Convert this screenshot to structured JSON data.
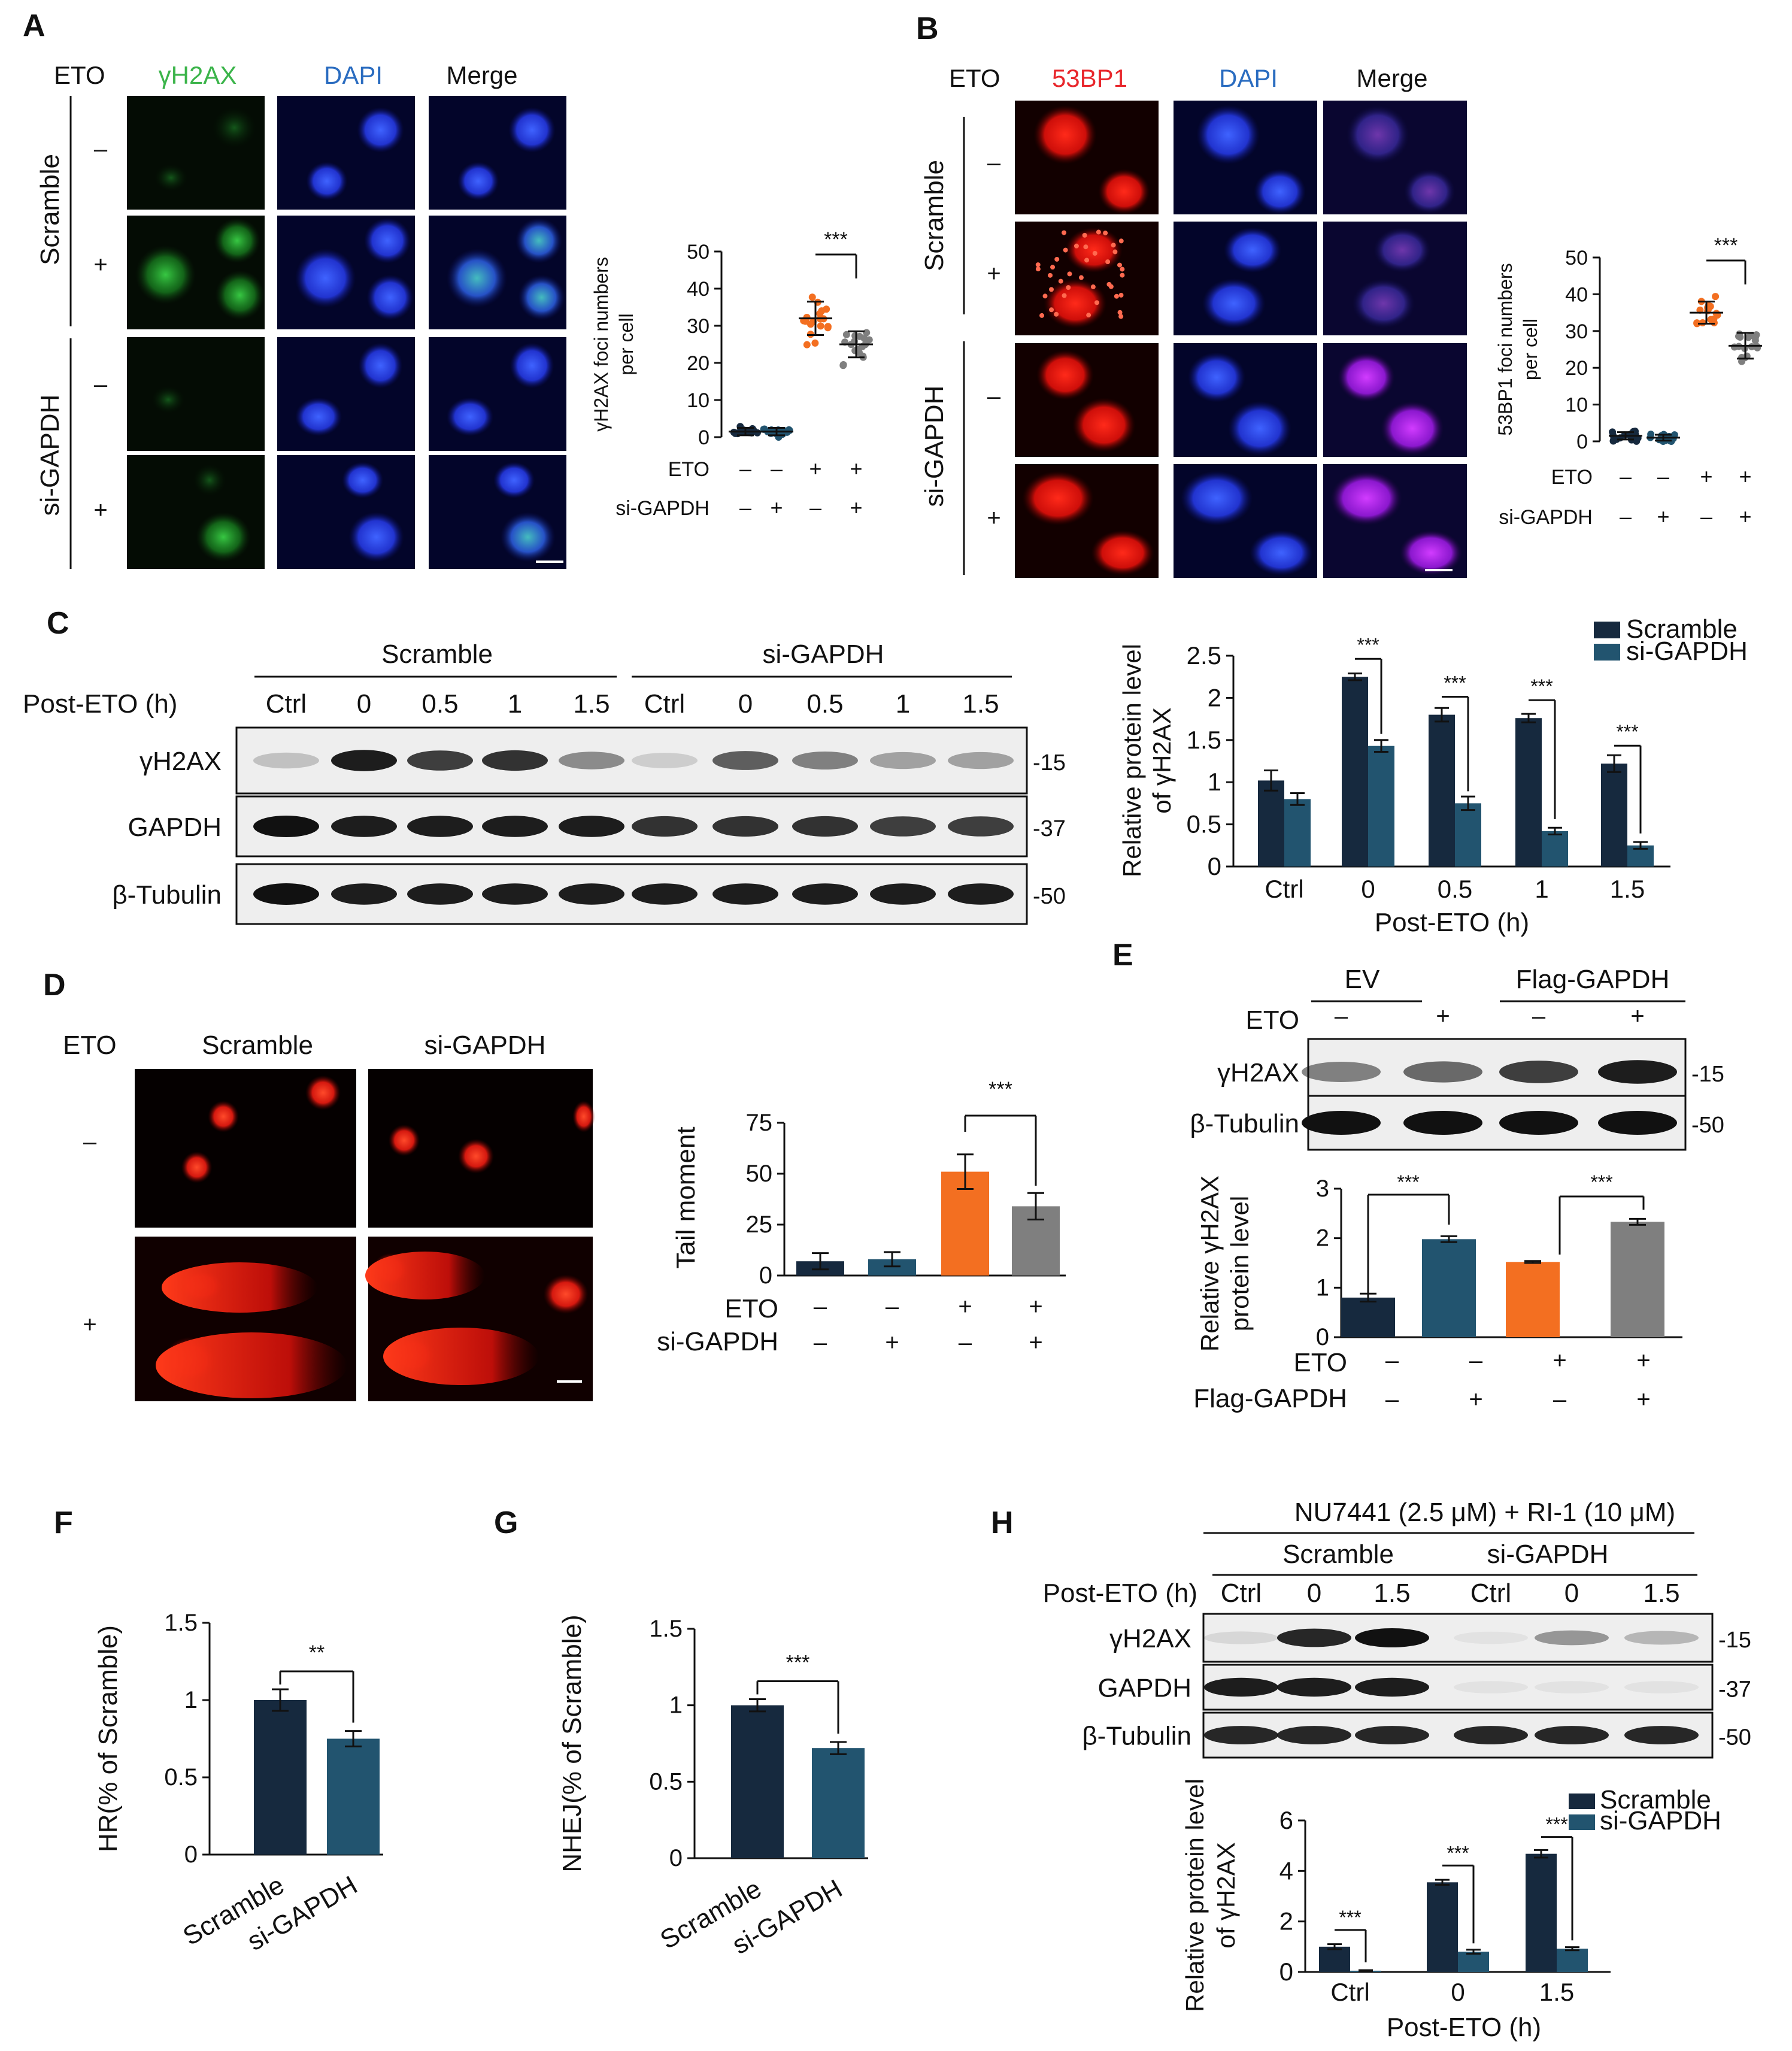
{
  "colors": {
    "dark_navy": "#16293e",
    "teal_blue": "#22546f",
    "orange": "#f36f21",
    "gray": "#7f7f7f",
    "green_label": "#3bb44a",
    "blue_label": "#2a6cc0",
    "red_label": "#e8262b"
  },
  "panel_letters": [
    "A",
    "B",
    "C",
    "D",
    "E",
    "F",
    "G",
    "H"
  ],
  "panelA": {
    "eto_label": "ETO",
    "col_labels": [
      "γH2AX",
      "DAPI",
      "Merge"
    ],
    "group_labels": [
      "Scramble",
      "si-GAPDH"
    ],
    "row_signs": [
      "–",
      "+",
      "–",
      "+"
    ],
    "chart": {
      "ylabel_line1": "γH2AX foci numbers",
      "ylabel_line2": "per cell",
      "yticks": [
        "0",
        "10",
        "20",
        "30",
        "40",
        "50"
      ],
      "row1_label": "ETO",
      "row1_signs": [
        "–",
        "–",
        "+",
        "+"
      ],
      "row2_label": "si-GAPDH",
      "row2_signs": [
        "–",
        "+",
        "–",
        "+"
      ],
      "sig": "***"
    }
  },
  "panelB": {
    "eto_label": "ETO",
    "col_labels": [
      "53BP1",
      "DAPI",
      "Merge"
    ],
    "group_labels": [
      "Scramble",
      "si-GAPDH"
    ],
    "row_signs": [
      "–",
      "+",
      "–",
      "+"
    ],
    "chart": {
      "ylabel_line1": "53BP1 foci numbers",
      "ylabel_line2": "per cell",
      "yticks": [
        "0",
        "10",
        "20",
        "30",
        "40",
        "50"
      ],
      "row1_label": "ETO",
      "row1_signs": [
        "–",
        "–",
        "+",
        "+"
      ],
      "row2_label": "si-GAPDH",
      "row2_signs": [
        "–",
        "+",
        "–",
        "+"
      ],
      "sig": "***"
    }
  },
  "panelC": {
    "group_labels": [
      "Scramble",
      "si-GAPDH"
    ],
    "time_label": "Post-ETO (h)",
    "lane_labels": [
      "Ctrl",
      "0",
      "0.5",
      "1",
      "1.5",
      "Ctrl",
      "0",
      "0.5",
      "1",
      "1.5"
    ],
    "blot_labels": [
      "γH2AX",
      "GAPDH",
      "β-Tubulin"
    ],
    "mw": [
      "-15",
      "-37",
      "-50"
    ],
    "chart": {
      "ylabel_line1": "Relative protein level",
      "ylabel_line2": "of γH2AX",
      "xlabel": "Post-ETO (h)",
      "yticks": [
        "0",
        "0.5",
        "1",
        "1.5",
        "2",
        "2.5"
      ],
      "sig": "***"
    }
  },
  "panelD": {
    "eto_label": "ETO",
    "col_labels": [
      "Scramble",
      "si-GAPDH"
    ],
    "row_signs": [
      "–",
      "+"
    ],
    "chart": {
      "ylabel": "Tail moment",
      "yticks": [
        "0",
        "25",
        "50",
        "75"
      ],
      "row1_label": "ETO",
      "row1_signs": [
        "–",
        "–",
        "+",
        "+"
      ],
      "row2_label": "si-GAPDH",
      "row2_signs": [
        "–",
        "+",
        "–",
        "+"
      ],
      "sig": "***"
    }
  },
  "panelE": {
    "group_labels": [
      "EV",
      "Flag-GAPDH"
    ],
    "eto_label": "ETO",
    "lane_signs": [
      "–",
      "+",
      "–",
      "+"
    ],
    "blot_labels": [
      "γH2AX",
      "β-Tubulin"
    ],
    "mw": [
      "-15",
      "-50"
    ],
    "chart": {
      "ylabel_line1": "Relative γH2AX",
      "ylabel_line2": "protein level",
      "yticks": [
        "0",
        "1",
        "2",
        "3"
      ],
      "row1_label": "ETO",
      "row1_signs": [
        "–",
        "–",
        "+",
        "+"
      ],
      "row2_label": "Flag-GAPDH",
      "row2_signs": [
        "–",
        "+",
        "–",
        "+"
      ],
      "sig": "***"
    }
  },
  "panelF": {
    "ylabel": "HR(% of Scramble)",
    "yticks": [
      "0",
      "0.5",
      "1",
      "1.5"
    ],
    "categories": [
      "Scramble",
      "si-GAPDH"
    ],
    "sig": "**"
  },
  "panelG": {
    "ylabel": "NHEJ(% of Scramble)",
    "yticks": [
      "0",
      "0.5",
      "1",
      "1.5"
    ],
    "categories": [
      "Scramble",
      "si-GAPDH"
    ],
    "sig": "***"
  },
  "panelH": {
    "header": "NU7441 (2.5 μM) + RI-1 (10 μM)",
    "group_labels": [
      "Scramble",
      "si-GAPDH"
    ],
    "time_label": "Post-ETO (h)",
    "lane_labels": [
      "Ctrl",
      "0",
      "1.5",
      "Ctrl",
      "0",
      "1.5"
    ],
    "blot_labels": [
      "γH2AX",
      "GAPDH",
      "β-Tubulin"
    ],
    "mw": [
      "-15",
      "-37",
      "-50"
    ],
    "chart": {
      "ylabel_line1": "Relative protein level",
      "ylabel_line2": "of γH2AX",
      "xlabel": "Post-ETO (h)",
      "yticks": [
        "0",
        "2",
        "4",
        "6"
      ],
      "sig": "***"
    }
  },
  "chart_data": [
    {
      "id": "A",
      "type": "scatter",
      "categories": [
        "1",
        "2",
        "3",
        "4"
      ],
      "ylim": [
        0,
        50
      ],
      "mean": [
        1.5,
        1.5,
        32,
        25
      ],
      "sd": [
        1,
        1,
        4.5,
        3.5
      ],
      "point_colors": [
        "#16293e",
        "#22546f",
        "#f36f21",
        "#7f7f7f"
      ]
    },
    {
      "id": "B",
      "type": "scatter",
      "categories": [
        "1",
        "2",
        "3",
        "4"
      ],
      "ylim": [
        0,
        50
      ],
      "mean": [
        1.5,
        1,
        35,
        26
      ],
      "sd": [
        1,
        0.8,
        3,
        3.5
      ],
      "point_colors": [
        "#16293e",
        "#22546f",
        "#f36f21",
        "#7f7f7f"
      ]
    },
    {
      "id": "C",
      "type": "bar",
      "categories": [
        "Ctrl",
        "0",
        "0.5",
        "1",
        "1.5"
      ],
      "ylim": [
        0,
        2.5
      ],
      "series": [
        {
          "name": "Scramble",
          "values": [
            1.02,
            2.25,
            1.8,
            1.76,
            1.22
          ],
          "err": [
            0.12,
            0.04,
            0.08,
            0.05,
            0.1
          ]
        },
        {
          "name": "si-GAPDH",
          "values": [
            0.8,
            1.43,
            0.75,
            0.42,
            0.25
          ],
          "err": [
            0.07,
            0.07,
            0.08,
            0.04,
            0.04
          ]
        }
      ]
    },
    {
      "id": "D",
      "type": "bar",
      "categories": [
        "1",
        "2",
        "3",
        "4"
      ],
      "ylim": [
        0,
        75
      ],
      "values": [
        7,
        8,
        51,
        34
      ],
      "err": [
        4,
        3.5,
        8.5,
        6.5
      ],
      "colors": [
        "#16293e",
        "#22546f",
        "#f36f21",
        "#7f7f7f"
      ]
    },
    {
      "id": "E",
      "type": "bar",
      "categories": [
        "1",
        "2",
        "3",
        "4"
      ],
      "ylim": [
        0,
        3
      ],
      "values": [
        0.8,
        1.98,
        1.52,
        2.33
      ],
      "err": [
        0.08,
        0.06,
        0.02,
        0.06
      ],
      "colors": [
        "#16293e",
        "#22546f",
        "#f36f21",
        "#7f7f7f"
      ]
    },
    {
      "id": "F",
      "type": "bar",
      "categories": [
        "Scramble",
        "si-GAPDH"
      ],
      "ylim": [
        0,
        1.5
      ],
      "values": [
        1.0,
        0.75
      ],
      "err": [
        0.07,
        0.05
      ],
      "colors": [
        "#16293e",
        "#22546f"
      ]
    },
    {
      "id": "G",
      "type": "bar",
      "categories": [
        "Scramble",
        "si-GAPDH"
      ],
      "ylim": [
        0,
        1.5
      ],
      "values": [
        1.0,
        0.72
      ],
      "err": [
        0.04,
        0.04
      ],
      "colors": [
        "#16293e",
        "#22546f"
      ]
    },
    {
      "id": "H",
      "type": "bar",
      "categories": [
        "Ctrl",
        "0",
        "1.5"
      ],
      "ylim": [
        0,
        6
      ],
      "series": [
        {
          "name": "Scramble",
          "values": [
            1.0,
            3.55,
            4.68
          ],
          "err": [
            0.1,
            0.1,
            0.15
          ]
        },
        {
          "name": "si-GAPDH",
          "values": [
            0.05,
            0.8,
            0.92
          ],
          "err": [
            0.02,
            0.08,
            0.06
          ]
        }
      ]
    }
  ]
}
